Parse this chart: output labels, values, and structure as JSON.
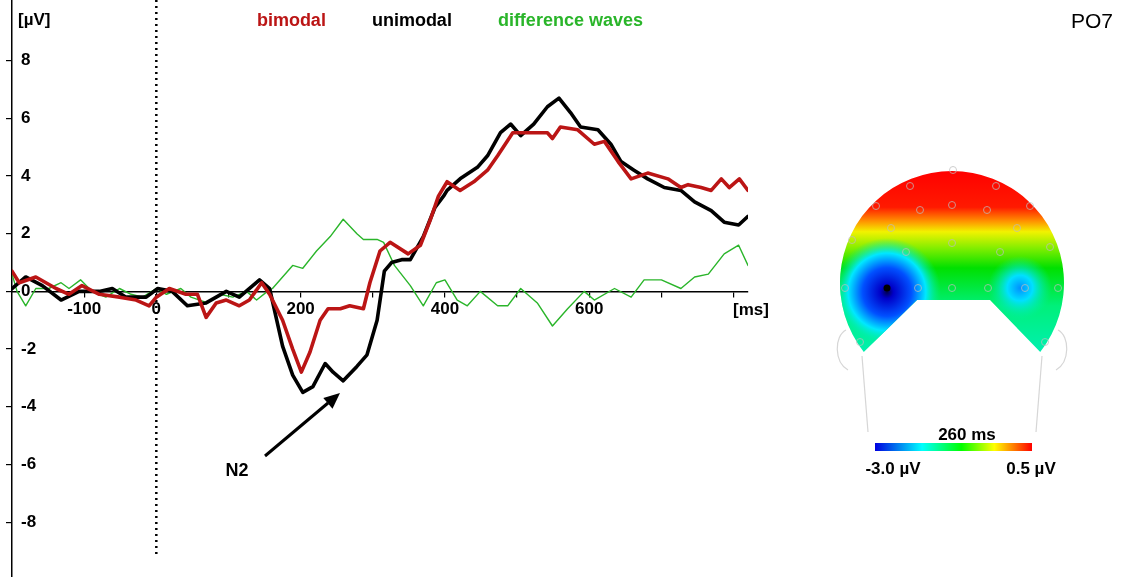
{
  "chart_data": {
    "type": "line",
    "title": "PO7",
    "xlabel": "[ms]",
    "ylabel": "[µV]",
    "xlim": [
      -200,
      820
    ],
    "ylim": [
      -9.9,
      10.1
    ],
    "xticks": [
      -100,
      0,
      {
        "value": 100,
        "label": null
      },
      200,
      {
        "value": 300,
        "label": null
      },
      400,
      {
        "value": 500,
        "label": null
      },
      600,
      {
        "value": 700,
        "label": null
      },
      {
        "value": 800,
        "label": null
      }
    ],
    "yticks": [
      -8,
      -6,
      -4,
      -2,
      0,
      2,
      4,
      6,
      8
    ],
    "legend": "top",
    "marker": "none",
    "line_style": "solid",
    "ref_lines": [
      {
        "axis": "x",
        "value": 0,
        "color": "#000000",
        "line_style": "dotted"
      }
    ],
    "annotations": [
      "N2",
      "260 ms",
      "-3.0 µV",
      "0.5 µV"
    ],
    "series": [
      {
        "name": "bimodal",
        "color": "#bb1515",
        "x": [
          -200,
          -190,
          -167,
          -139,
          -121,
          -103,
          -79,
          -51,
          -28,
          -10,
          0,
          18,
          41,
          57,
          69,
          83,
          97,
          115,
          129,
          146,
          157,
          175,
          189,
          201,
          213,
          227,
          238,
          255,
          268,
          287,
          296,
          310,
          324,
          349,
          366,
          380,
          391,
          403,
          421,
          440,
          459,
          473,
          494,
          514,
          542,
          549,
          560,
          584,
          607,
          621,
          640,
          658,
          681,
          709,
          727,
          737,
          755,
          769,
          783,
          794,
          808,
          820
        ],
        "values": [
          0.7,
          0.3,
          0.5,
          0.1,
          -0.1,
          0.2,
          -0.1,
          -0.2,
          -0.3,
          -0.5,
          -0.2,
          0.1,
          -0.1,
          -0.1,
          -0.9,
          -0.4,
          -0.3,
          -0.5,
          -0.3,
          0.3,
          -0.1,
          -1.0,
          -2.0,
          -2.8,
          -2.1,
          -1.0,
          -0.6,
          -0.6,
          -0.5,
          -0.6,
          0.3,
          1.4,
          1.7,
          1.3,
          1.6,
          2.5,
          3.3,
          3.8,
          3.5,
          3.8,
          4.2,
          4.7,
          5.5,
          5.5,
          5.5,
          5.3,
          5.7,
          5.6,
          5.1,
          5.2,
          4.5,
          3.9,
          4.1,
          3.9,
          3.6,
          3.7,
          3.6,
          3.5,
          3.9,
          3.6,
          3.9,
          3.5
        ]
      },
      {
        "name": "unimodal",
        "color": "#000000",
        "x": [
          -200,
          -181,
          -158,
          -132,
          -107,
          -79,
          -61,
          -42,
          -14,
          2,
          22,
          43,
          69,
          97,
          115,
          143,
          157,
          175,
          189,
          203,
          217,
          234,
          245,
          259,
          278,
          292,
          306,
          316,
          326,
          340,
          352,
          370,
          386,
          398,
          403,
          421,
          445,
          459,
          477,
          491,
          505,
          523,
          542,
          558,
          574,
          588,
          612,
          630,
          644,
          662,
          681,
          704,
          727,
          746,
          769,
          787,
          807,
          820
        ],
        "values": [
          0.1,
          0.5,
          0.2,
          -0.3,
          0,
          0,
          0.1,
          -0.2,
          -0.2,
          0.1,
          0,
          -0.5,
          -0.4,
          0,
          -0.2,
          0.4,
          0.1,
          -1.9,
          -2.9,
          -3.5,
          -3.3,
          -2.5,
          -2.8,
          -3.1,
          -2.6,
          -2.2,
          -1.0,
          0.7,
          1.0,
          1.1,
          1.1,
          1.9,
          2.9,
          3.3,
          3.5,
          3.9,
          4.3,
          4.7,
          5.5,
          5.8,
          5.4,
          5.8,
          6.4,
          6.7,
          6.2,
          5.7,
          5.6,
          5.1,
          4.5,
          4.2,
          3.9,
          3.6,
          3.5,
          3.1,
          2.8,
          2.4,
          2.3,
          2.6
        ]
      },
      {
        "name": "difference waves",
        "color": "#2ab52a",
        "x": [
          -200,
          -193,
          -181,
          -167,
          -149,
          -132,
          -121,
          -105,
          -89,
          -70,
          -51,
          -35,
          -19,
          0,
          14,
          34,
          48,
          71,
          88,
          106,
          125,
          139,
          154,
          161,
          189,
          203,
          222,
          241,
          259,
          278,
          287,
          306,
          315,
          330,
          352,
          370,
          388,
          400,
          417,
          431,
          449,
          473,
          487,
          505,
          528,
          549,
          570,
          593,
          607,
          635,
          658,
          676,
          700,
          727,
          746,
          765,
          787,
          807,
          820
        ],
        "values": [
          0.6,
          0,
          -0.5,
          0.1,
          0.1,
          0.3,
          0.1,
          0.4,
          0,
          -0.2,
          0.1,
          -0.1,
          -0.2,
          0.1,
          -0.1,
          0.1,
          -0.2,
          -0.4,
          -0.1,
          -0.2,
          0,
          -0.3,
          0,
          0.1,
          0.9,
          0.8,
          1.4,
          1.9,
          2.5,
          2.0,
          1.8,
          1.8,
          1.7,
          0.9,
          0.2,
          -0.5,
          0.3,
          0.4,
          -0.3,
          -0.5,
          0,
          -0.5,
          -0.5,
          0.1,
          -0.4,
          -1.2,
          -0.6,
          0,
          -0.3,
          0.1,
          -0.2,
          0.4,
          0.4,
          0.1,
          0.5,
          0.6,
          1.3,
          1.6,
          0.9
        ]
      }
    ]
  }
}
